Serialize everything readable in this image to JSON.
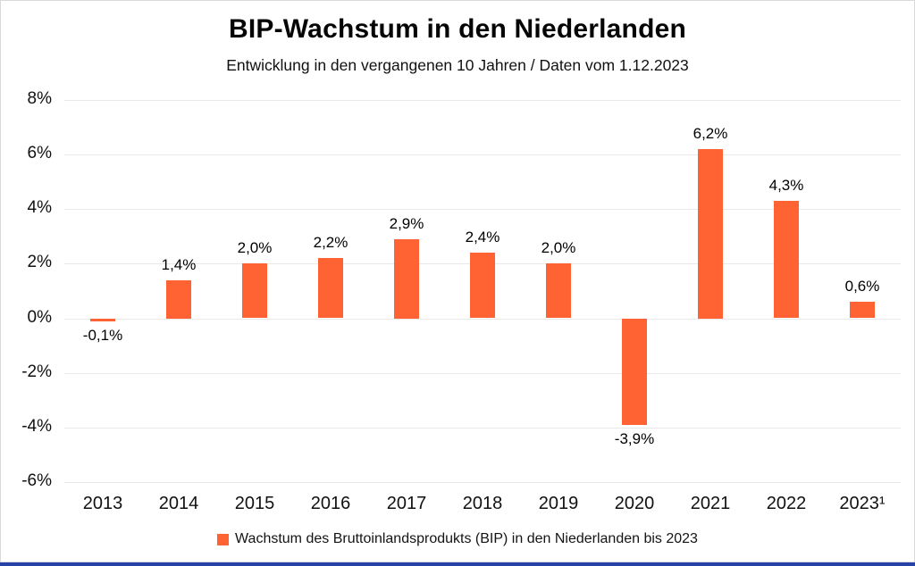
{
  "chart_data": {
    "type": "bar",
    "title": "BIP-Wachstum in den Niederlanden",
    "subtitle": "Entwicklung in den vergangenen 10 Jahren / Daten vom 1.12.2023",
    "categories": [
      "2013",
      "2014",
      "2015",
      "2016",
      "2017",
      "2018",
      "2019",
      "2020",
      "2021",
      "2022",
      "2023¹"
    ],
    "values": [
      -0.1,
      1.4,
      2.0,
      2.2,
      2.9,
      2.4,
      2.0,
      -3.9,
      6.2,
      4.3,
      0.6
    ],
    "value_labels": [
      "-0,1%",
      "1,4%",
      "2,0%",
      "2,2%",
      "2,9%",
      "2,4%",
      "2,0%",
      "-3,9%",
      "6,2%",
      "4,3%",
      "0,6%"
    ],
    "xlabel": "",
    "ylabel": "",
    "ylim": [
      -6,
      8
    ],
    "ytick_step": 2,
    "ytick_labels": [
      "8%",
      "6%",
      "4%",
      "2%",
      "0%",
      "-2%",
      "-4%",
      "-6%"
    ],
    "grid": true,
    "legend": {
      "position": "bottom",
      "label": "Wachstum des Bruttoinlandsprodukts (BIP) in den Niederlanden bis 2023"
    },
    "colors": {
      "bar": "#ff6333",
      "gridline": "#e9e9e9",
      "text": "#111111",
      "frame_border": "#d9d9d9",
      "footer_bar": "#2843a7"
    }
  }
}
